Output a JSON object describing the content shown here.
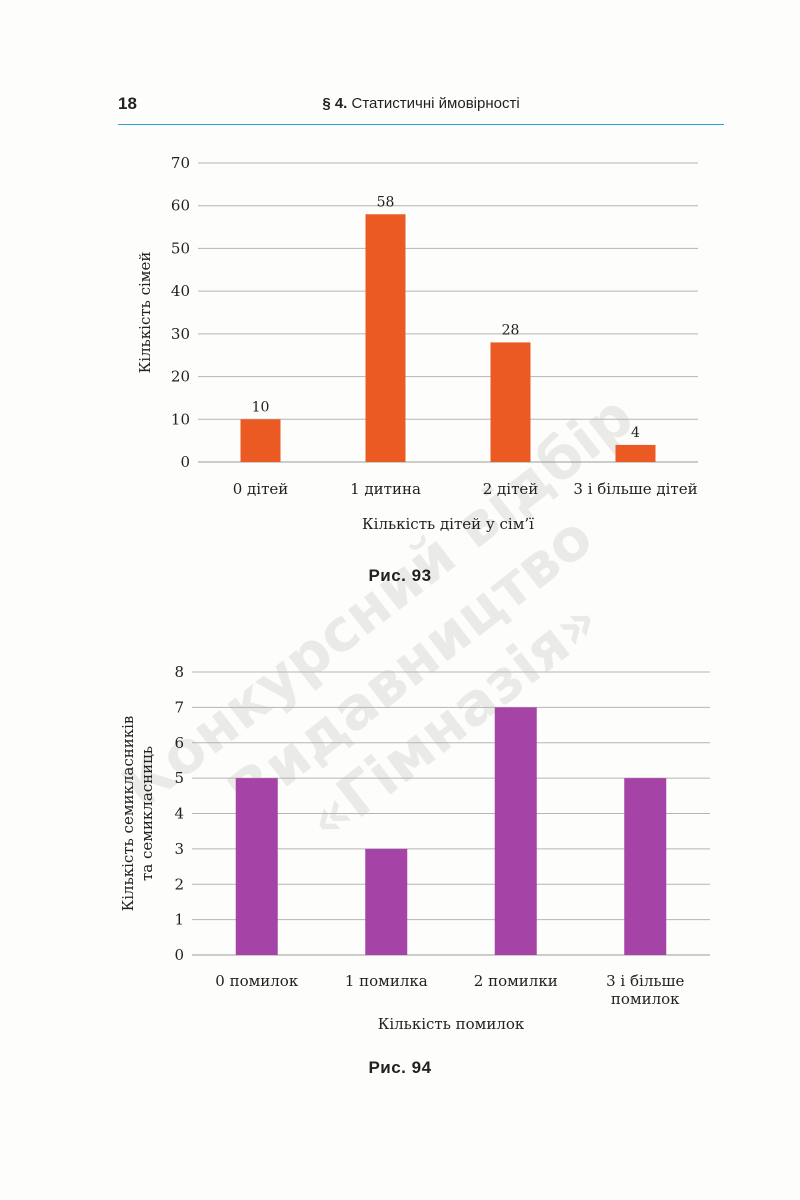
{
  "header": {
    "page_number": "18",
    "section_mark": "§ 4.",
    "section_title": "Статистичні ймовірності"
  },
  "watermark": {
    "lines": [
      "Конкурсний відбір",
      "Видавництво",
      "«Гімназія»"
    ]
  },
  "chart_data": [
    {
      "type": "bar",
      "categories": [
        "0 дітей",
        "1 дитина",
        "2 дітей",
        "3 і більше дітей"
      ],
      "values": [
        10,
        58,
        28,
        4
      ],
      "data_labels": [
        "10",
        "58",
        "28",
        "4"
      ],
      "xlabel": "Кількість дітей у сім’ї",
      "ylabel": "Кількість сімей",
      "ylim": [
        0,
        70
      ],
      "yticks": [
        0,
        10,
        20,
        30,
        40,
        50,
        60,
        70
      ],
      "grid": true,
      "color": "#ec5a24",
      "caption": "Рис. 93"
    },
    {
      "type": "bar",
      "categories": [
        "0 помилок",
        "1 помилка",
        "2 помилки",
        "3 і більше помилок"
      ],
      "category_lines": [
        [
          "0 помилок"
        ],
        [
          "1 помилка"
        ],
        [
          "2 помилки"
        ],
        [
          "3 і більше",
          "помилок"
        ]
      ],
      "values": [
        5,
        3,
        7,
        5
      ],
      "xlabel": "Кількість помилок",
      "ylabel": "Кількість семикласників та семикласниць",
      "ylabel_lines": [
        "Кількість семикласників",
        "та семикласниць"
      ],
      "ylim": [
        0,
        8
      ],
      "yticks": [
        0,
        1,
        2,
        3,
        4,
        5,
        6,
        7,
        8
      ],
      "grid": true,
      "color": "#a544a6",
      "caption": "Рис. 94"
    }
  ]
}
